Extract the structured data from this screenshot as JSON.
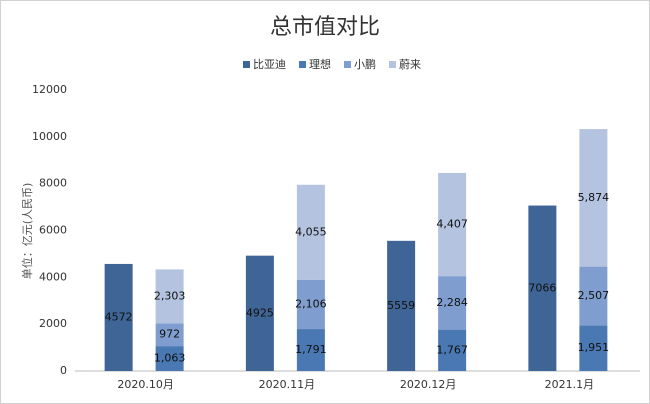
{
  "chart_data": {
    "type": "bar",
    "title": "总市值对比",
    "y_label": "单位：亿元(人民币)",
    "categories": [
      "2020.10月",
      "2020.11月",
      "2020.12月",
      "2021.1月"
    ],
    "series": [
      {
        "name": "比亚迪",
        "color": "#3e6595",
        "values": [
          4572,
          4925,
          5559,
          7066
        ]
      },
      {
        "name": "理想",
        "color": "#4a78b3",
        "values": [
          1063,
          1791,
          1767,
          1951
        ],
        "value_labels": [
          "1,063",
          "1,791",
          "1,767",
          "1,951"
        ]
      },
      {
        "name": "小鹏",
        "color": "#7f9ecf",
        "values": [
          972,
          2106,
          2284,
          2507
        ],
        "value_labels": [
          "972",
          "2,106",
          "2,284",
          "2,507"
        ]
      },
      {
        "name": "蔚来",
        "color": "#b4c3e0",
        "values": [
          2303,
          4055,
          4407,
          5874
        ],
        "value_labels": [
          "2,303",
          "4,055",
          "4,407",
          "5,874"
        ]
      }
    ],
    "ylim": [
      0,
      12000
    ],
    "yticks": [
      0,
      2000,
      4000,
      6000,
      8000,
      10000,
      12000
    ],
    "grid": false,
    "legend": "top"
  }
}
